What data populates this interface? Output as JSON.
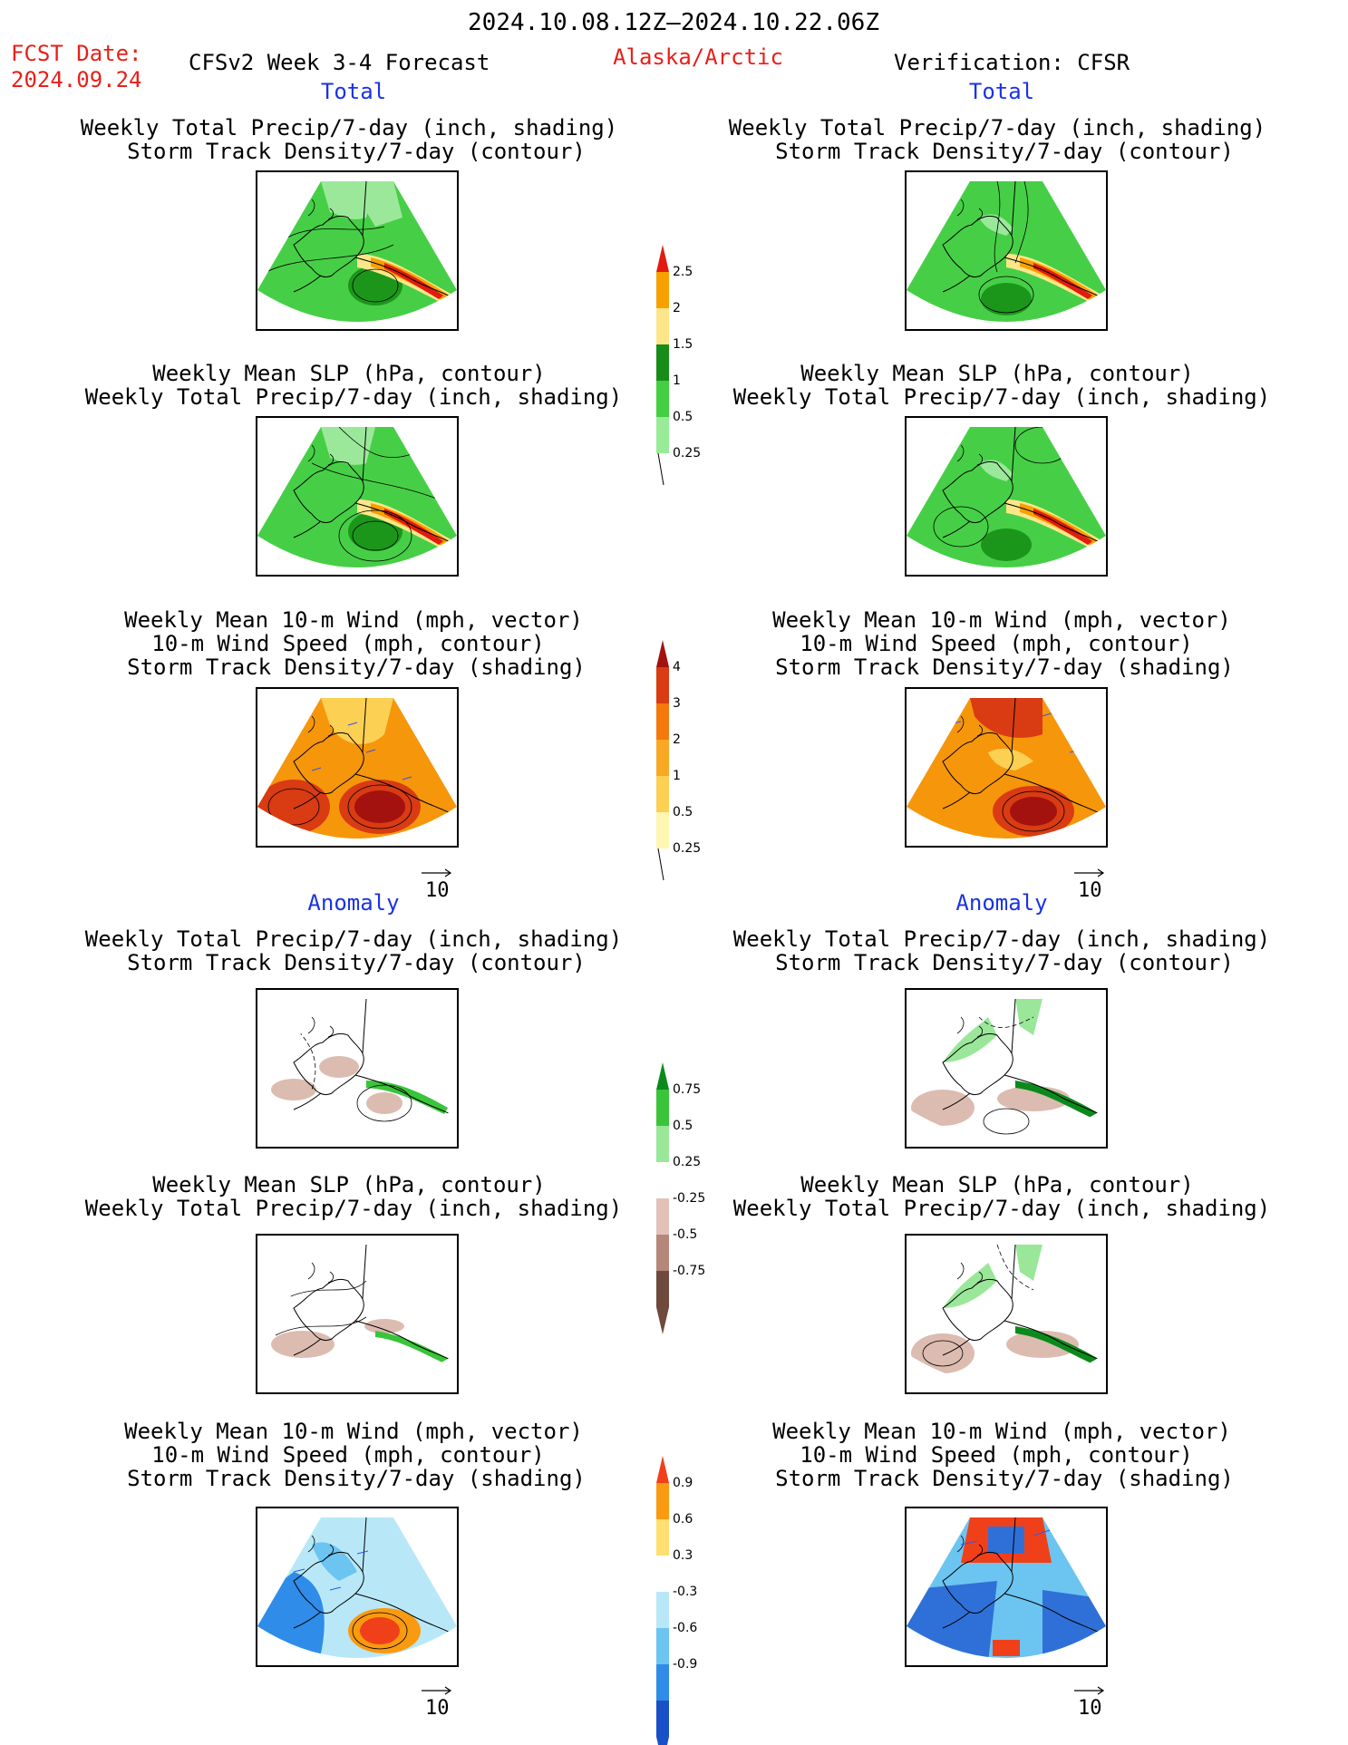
{
  "header": {
    "date_range": "2024.10.08.12Z—2024.10.22.06Z",
    "fcst_label": "FCST Date:",
    "fcst_date": "2024.09.24",
    "model": "CFSv2 Week 3-4 Forecast",
    "region": "Alaska/Arctic",
    "verification": "Verification: CFSR"
  },
  "sections": {
    "total": "Total",
    "anomaly": "Anomaly"
  },
  "panel_titles": {
    "precip_track": [
      "Weekly Total Precip/7-day (inch, shading)",
      "Storm Track Density/7-day (contour)"
    ],
    "slp_precip": [
      "Weekly Mean SLP (hPa, contour)",
      "Weekly Total Precip/7-day (inch, shading)"
    ],
    "wind_track": [
      "Weekly Mean 10-m Wind (mph, vector)",
      "10-m Wind Speed (mph, contour)",
      "Storm Track Density/7-day (shading)"
    ]
  },
  "vector_ref": "10",
  "colorbars": {
    "total_precip": {
      "labels": [
        "2.5",
        "2",
        "1.5",
        "1",
        "0.5",
        "0.25"
      ],
      "colors": [
        "#e21b10",
        "#f8a000",
        "#fde68a",
        "#178c17",
        "#42cf42",
        "#98ec98"
      ]
    },
    "total_track": {
      "labels": [
        "4",
        "3",
        "2",
        "1",
        "0.5",
        "0.25"
      ],
      "colors": [
        "#a3120e",
        "#d93b13",
        "#f5780b",
        "#f9a823",
        "#fcd053",
        "#fef7b2"
      ]
    },
    "anom_precip": {
      "labels": [
        "0.75",
        "0.5",
        "0.25",
        "-0.25",
        "-0.5",
        "-0.75"
      ],
      "colors": [
        "#0b8a1c",
        "#3ac43a",
        "#9ae79a",
        "#ffffff",
        "#e2c2b8",
        "#b38878",
        "#6e4a3c"
      ]
    },
    "anom_track": {
      "labels": [
        "0.9",
        "0.6",
        "0.3",
        "-0.3",
        "-0.6",
        "-0.9"
      ],
      "colors": [
        "#f0401a",
        "#f99a10",
        "#fde070",
        "#ffffff",
        "#b8e8f8",
        "#6cc4f0",
        "#2f8ce8",
        "#1850c8"
      ]
    }
  },
  "map_colors": {
    "precip_light": "#9be89b",
    "precip_mid": "#46cf46",
    "precip_dark": "#1b961b",
    "precip_high": "#fde68a",
    "precip_orange": "#f8a000",
    "precip_red": "#e21b10",
    "track_yellow": "#fcd053",
    "track_orange": "#f5960b",
    "track_red": "#d93b13",
    "track_dark": "#a3120e",
    "anom_brown": "#dcbcb0",
    "anom_green": "#3ac43a",
    "anom_blue": "#2f70d8",
    "anom_red": "#f0401a"
  }
}
